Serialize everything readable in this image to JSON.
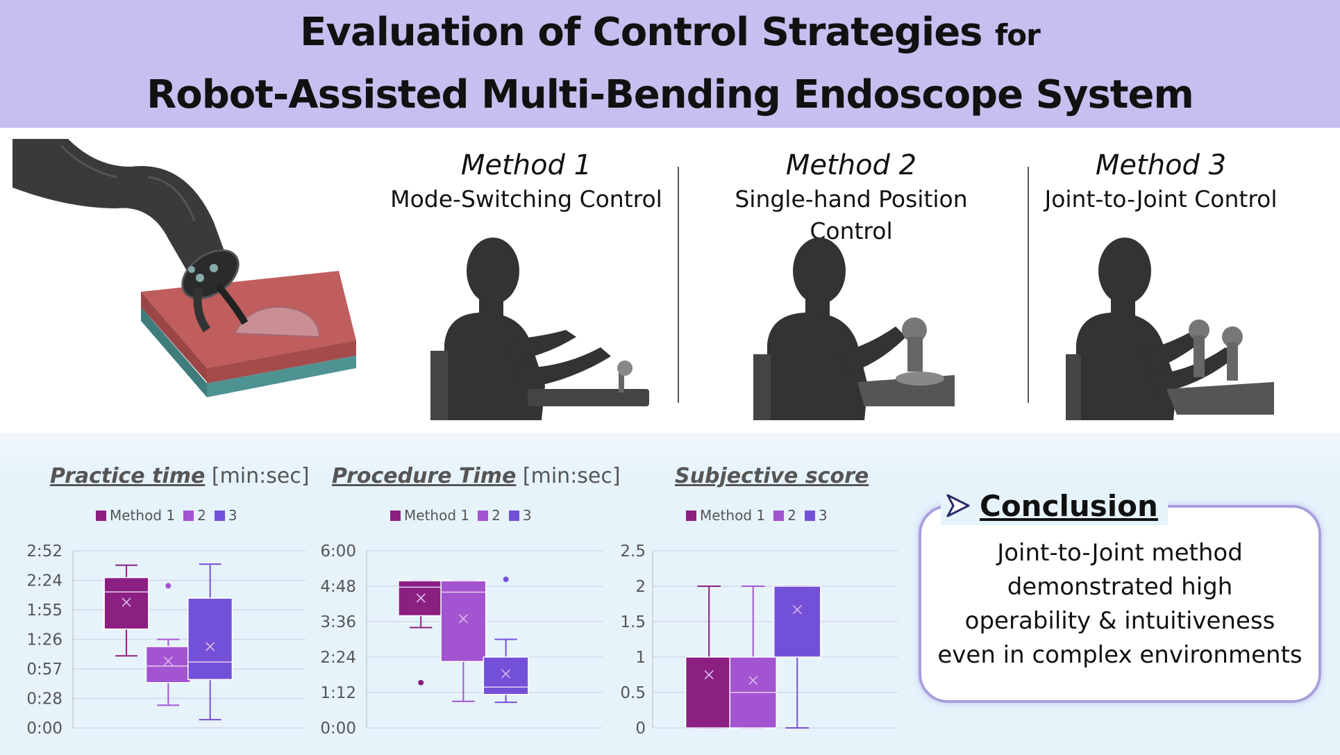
{
  "title": {
    "line1_main": "Evaluation of Control Strategies",
    "line1_suffix": "for",
    "line2": "Robot-Assisted Multi-Bending Endoscope System"
  },
  "methods": [
    {
      "name": "Method 1",
      "subtitle": "Mode-Switching Control"
    },
    {
      "name": "Method 2",
      "subtitle": "Single-hand Position Control"
    },
    {
      "name": "Method 3",
      "subtitle": "Joint-to-Joint Control"
    }
  ],
  "colors": {
    "banner": "#c7bfef",
    "method1": "#8b1f82",
    "method2": "#a354d1",
    "method3": "#7350d8",
    "panel": "#e7f3fb"
  },
  "icons": [
    "endoscope-robot-illustration",
    "operator-silhouette-icon",
    "joystick-icon",
    "arrow-pointer-icon"
  ],
  "conclusion": {
    "title": "Conclusion",
    "lines": [
      "Joint-to-Joint method",
      "demonstrated high",
      "operability & intuitiveness",
      "even in complex environments"
    ]
  },
  "chart_data": [
    {
      "type": "box",
      "title_key": "Practice time",
      "title_unit": "[min:sec]",
      "legend": [
        "Method 1",
        "2",
        "3"
      ],
      "y_tick_labels": [
        "0:00",
        "0:28",
        "0:57",
        "1:26",
        "1:55",
        "2:24",
        "2:52"
      ],
      "ylim_seconds": [
        0,
        172
      ],
      "series_seconds": [
        {
          "name": "Method 1",
          "min": 70,
          "q1": 96,
          "median": 132,
          "q3": 146,
          "max": 158,
          "mean": 122,
          "outliers": []
        },
        {
          "name": "2",
          "min": 22,
          "q1": 44,
          "median": 60,
          "q3": 79,
          "max": 86,
          "mean": 65,
          "outliers": [
            138
          ]
        },
        {
          "name": "3",
          "min": 8,
          "q1": 47,
          "median": 64,
          "q3": 126,
          "max": 159,
          "mean": 79,
          "outliers": []
        }
      ]
    },
    {
      "type": "box",
      "title_key": "Procedure Time",
      "title_unit": "[min:sec]",
      "legend": [
        "Method 1",
        "2",
        "3"
      ],
      "y_tick_labels": [
        "0:00",
        "1:12",
        "2:24",
        "3:36",
        "4:48",
        "6:00"
      ],
      "ylim_seconds": [
        0,
        360
      ],
      "series_seconds": [
        {
          "name": "Method 1",
          "min": 204,
          "q1": 228,
          "median": 286,
          "q3": 299,
          "max": 299,
          "mean": 264,
          "outliers": [
            92
          ]
        },
        {
          "name": "2",
          "min": 54,
          "q1": 135,
          "median": 276,
          "q3": 299,
          "max": 299,
          "mean": 222,
          "outliers": []
        },
        {
          "name": "3",
          "min": 52,
          "q1": 68,
          "median": 83,
          "q3": 144,
          "max": 180,
          "mean": 110,
          "outliers": [
            302
          ]
        }
      ]
    },
    {
      "type": "box",
      "title_key": "Subjective score",
      "title_unit": "",
      "legend": [
        "Method 1",
        "2",
        "3"
      ],
      "y_tick_labels": [
        "0",
        "0.5",
        "1",
        "1.5",
        "2",
        "2.5"
      ],
      "ylim": [
        0,
        2.5
      ],
      "series": [
        {
          "name": "Method 1",
          "min": 0,
          "q1": 0,
          "median": 0,
          "q3": 1,
          "max": 2,
          "mean": 0.75,
          "outliers": []
        },
        {
          "name": "2",
          "min": 0,
          "q1": 0,
          "median": 0.5,
          "q3": 1,
          "max": 2,
          "mean": 0.67,
          "outliers": []
        },
        {
          "name": "3",
          "min": 0,
          "q1": 1,
          "median": 2,
          "q3": 2,
          "max": 2,
          "mean": 1.67,
          "outliers": []
        }
      ]
    }
  ]
}
